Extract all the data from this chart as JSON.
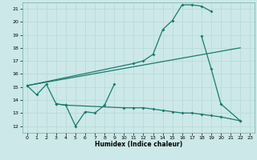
{
  "xlabel": "Humidex (Indice chaleur)",
  "bg_color": "#cce8e8",
  "line_color": "#1a7a6e",
  "grid_color": "#b8d8d8",
  "xlim": [
    -0.5,
    23.5
  ],
  "ylim": [
    11.5,
    21.5
  ],
  "xticks": [
    0,
    1,
    2,
    3,
    4,
    5,
    6,
    7,
    8,
    9,
    10,
    11,
    12,
    13,
    14,
    15,
    16,
    17,
    18,
    19,
    20,
    21,
    22,
    23
  ],
  "yticks": [
    12,
    13,
    14,
    15,
    16,
    17,
    18,
    19,
    20,
    21
  ],
  "line1_x": [
    0,
    1,
    2,
    3,
    4,
    5,
    6,
    7,
    8,
    9
  ],
  "line1_y": [
    15.1,
    14.4,
    15.2,
    13.7,
    13.6,
    12.0,
    13.1,
    13.0,
    13.6,
    15.2
  ],
  "line2_x": [
    0,
    11,
    12,
    13,
    14,
    15,
    16,
    17,
    18,
    19
  ],
  "line2_y": [
    15.1,
    16.8,
    17.0,
    17.5,
    19.4,
    20.1,
    21.3,
    21.3,
    21.2,
    20.8
  ],
  "line3_x": [
    18,
    19,
    20,
    22
  ],
  "line3_y": [
    18.9,
    16.4,
    13.7,
    12.4
  ],
  "line4_x": [
    3,
    4,
    10,
    11,
    12,
    13,
    14,
    15,
    16,
    17,
    18,
    19,
    20,
    22
  ],
  "line4_y": [
    13.7,
    13.6,
    13.4,
    13.4,
    13.4,
    13.3,
    13.2,
    13.1,
    13.0,
    13.0,
    12.9,
    12.8,
    12.7,
    12.4
  ],
  "ref_line_x": [
    0,
    22
  ],
  "ref_line_y": [
    15.1,
    18.0
  ]
}
